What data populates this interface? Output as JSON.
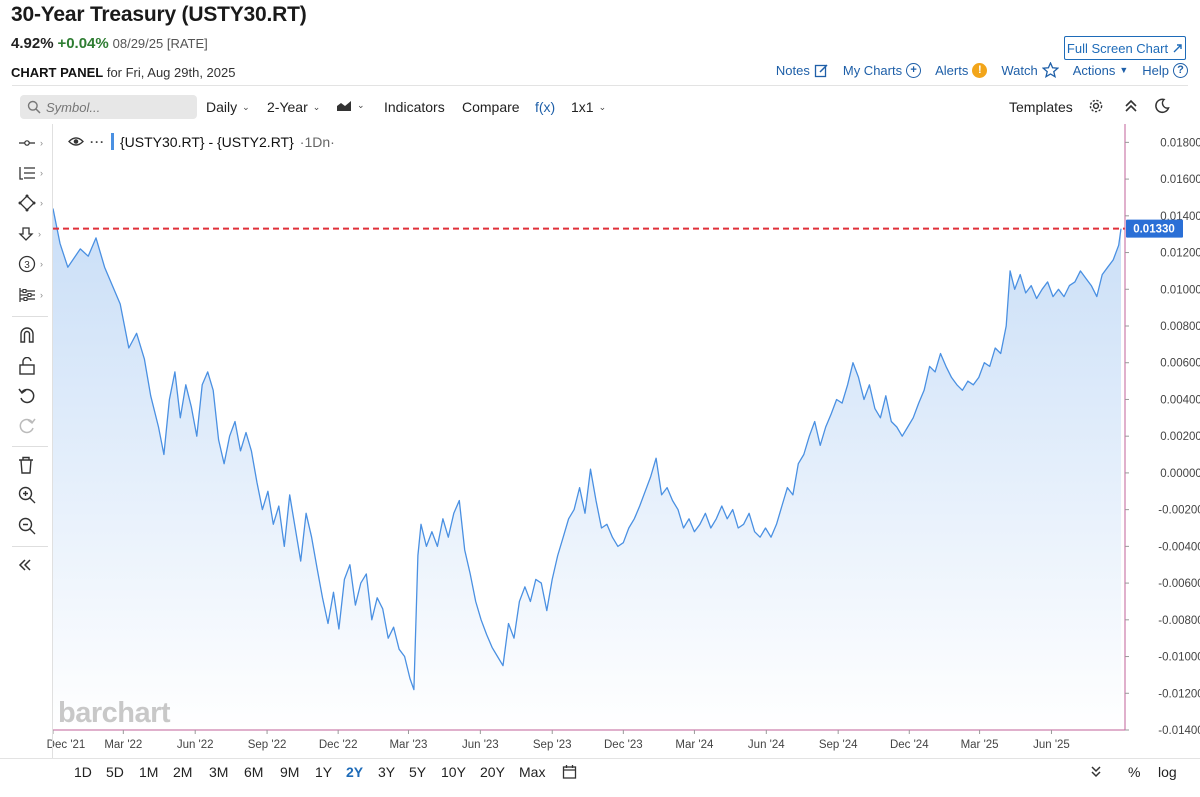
{
  "header": {
    "title": "30-Year Treasury (USTY30.RT)",
    "last": "4.92%",
    "change": "+0.04%",
    "date_note": "08/29/25 [RATE]",
    "panel_label": "CHART PANEL",
    "panel_date": "for Fri, Aug 29th, 2025",
    "fullscreen_label": "Full Screen Chart"
  },
  "top_links": {
    "notes": "Notes",
    "my_charts": "My Charts",
    "alerts": "Alerts",
    "watch": "Watch",
    "actions": "Actions",
    "help": "Help"
  },
  "toolbar": {
    "symbol_placeholder": "Symbol...",
    "period": "Daily",
    "range": "2-Year",
    "indicators": "Indicators",
    "compare": "Compare",
    "fx": "f(x)",
    "layout": "1x1",
    "templates": "Templates"
  },
  "legend": {
    "dots": "···",
    "series": "{USTY30.RT} - {USTY2.RT}",
    "period": "·1Dn·"
  },
  "watermark": "barchart",
  "bottom": {
    "ranges": [
      "1D",
      "5D",
      "1M",
      "2M",
      "3M",
      "6M",
      "9M",
      "1Y",
      "2Y",
      "3Y",
      "5Y",
      "10Y",
      "20Y",
      "Max"
    ],
    "active": "2Y",
    "percent": "%",
    "log": "log"
  },
  "colors": {
    "line": "#4a90e2",
    "area_top": "#c9def7",
    "area_bottom": "#ffffff",
    "ref_line": "#e0303a",
    "axis": "#c0629a",
    "price_tag": "#2a6fd6"
  },
  "chart_data": {
    "type": "area",
    "current_value": 0.0133,
    "current_label": "0.01330",
    "ylim": [
      -0.014,
      0.019
    ],
    "y_ticks": [
      "0.01800",
      "0.01600",
      "0.01400",
      "0.01200",
      "0.01000",
      "0.00800",
      "0.00600",
      "0.00400",
      "0.00200",
      "0.00000",
      "-0.00200",
      "-0.00400",
      "-0.00600",
      "-0.00800",
      "-0.01000",
      "-0.01200",
      "-0.01400"
    ],
    "y_tick_values": [
      0.018,
      0.016,
      0.014,
      0.012,
      0.01,
      0.008,
      0.006,
      0.004,
      0.002,
      0.0,
      -0.002,
      -0.004,
      -0.006,
      -0.008,
      -0.01,
      -0.012,
      -0.014
    ],
    "x_range": [
      "2021-12-01",
      "2025-08-29"
    ],
    "x_ticks": [
      {
        "label": "Dec '21",
        "date": "2021-12-01"
      },
      {
        "label": "Mar '22",
        "date": "2022-03-01"
      },
      {
        "label": "Jun '22",
        "date": "2022-06-01"
      },
      {
        "label": "Sep '22",
        "date": "2022-09-01"
      },
      {
        "label": "Dec '22",
        "date": "2022-12-01"
      },
      {
        "label": "Mar '23",
        "date": "2023-03-01"
      },
      {
        "label": "Jun '23",
        "date": "2023-06-01"
      },
      {
        "label": "Sep '23",
        "date": "2023-09-01"
      },
      {
        "label": "Dec '23",
        "date": "2023-12-01"
      },
      {
        "label": "Mar '24",
        "date": "2024-03-01"
      },
      {
        "label": "Jun '24",
        "date": "2024-06-01"
      },
      {
        "label": "Sep '24",
        "date": "2024-09-01"
      },
      {
        "label": "Dec '24",
        "date": "2024-12-01"
      },
      {
        "label": "Mar '25",
        "date": "2025-03-01"
      },
      {
        "label": "Jun '25",
        "date": "2025-06-01"
      }
    ],
    "series": [
      {
        "name": "{USTY30.RT} - {USTY2.RT}",
        "points": [
          [
            "2021-12-01",
            0.0144
          ],
          [
            "2021-12-10",
            0.0125
          ],
          [
            "2021-12-20",
            0.0112
          ],
          [
            "2022-01-05",
            0.0122
          ],
          [
            "2022-01-15",
            0.0118
          ],
          [
            "2022-01-25",
            0.0128
          ],
          [
            "2022-02-05",
            0.0112
          ],
          [
            "2022-02-15",
            0.0102
          ],
          [
            "2022-02-25",
            0.0092
          ],
          [
            "2022-03-08",
            0.0068
          ],
          [
            "2022-03-18",
            0.0076
          ],
          [
            "2022-03-28",
            0.0062
          ],
          [
            "2022-04-05",
            0.0042
          ],
          [
            "2022-04-15",
            0.0025
          ],
          [
            "2022-04-22",
            0.001
          ],
          [
            "2022-04-29",
            0.004
          ],
          [
            "2022-05-06",
            0.0055
          ],
          [
            "2022-05-13",
            0.003
          ],
          [
            "2022-05-20",
            0.0048
          ],
          [
            "2022-05-27",
            0.0036
          ],
          [
            "2022-06-03",
            0.002
          ],
          [
            "2022-06-10",
            0.0048
          ],
          [
            "2022-06-17",
            0.0055
          ],
          [
            "2022-06-24",
            0.0045
          ],
          [
            "2022-07-01",
            0.0018
          ],
          [
            "2022-07-08",
            0.0005
          ],
          [
            "2022-07-15",
            0.002
          ],
          [
            "2022-07-22",
            0.0028
          ],
          [
            "2022-07-29",
            0.0012
          ],
          [
            "2022-08-05",
            0.0022
          ],
          [
            "2022-08-12",
            0.0012
          ],
          [
            "2022-08-19",
            -0.0005
          ],
          [
            "2022-08-26",
            -0.002
          ],
          [
            "2022-09-02",
            -0.001
          ],
          [
            "2022-09-09",
            -0.0028
          ],
          [
            "2022-09-16",
            -0.0018
          ],
          [
            "2022-09-23",
            -0.004
          ],
          [
            "2022-09-30",
            -0.0012
          ],
          [
            "2022-10-07",
            -0.003
          ],
          [
            "2022-10-14",
            -0.0048
          ],
          [
            "2022-10-21",
            -0.0022
          ],
          [
            "2022-10-28",
            -0.0035
          ],
          [
            "2022-11-04",
            -0.0052
          ],
          [
            "2022-11-11",
            -0.0068
          ],
          [
            "2022-11-18",
            -0.0082
          ],
          [
            "2022-11-25",
            -0.0065
          ],
          [
            "2022-12-02",
            -0.0085
          ],
          [
            "2022-12-09",
            -0.0058
          ],
          [
            "2022-12-16",
            -0.005
          ],
          [
            "2022-12-23",
            -0.0072
          ],
          [
            "2022-12-30",
            -0.006
          ],
          [
            "2023-01-06",
            -0.0055
          ],
          [
            "2023-01-13",
            -0.008
          ],
          [
            "2023-01-20",
            -0.0068
          ],
          [
            "2023-01-27",
            -0.0074
          ],
          [
            "2023-02-03",
            -0.009
          ],
          [
            "2023-02-10",
            -0.0084
          ],
          [
            "2023-02-17",
            -0.0096
          ],
          [
            "2023-02-24",
            -0.01
          ],
          [
            "2023-03-03",
            -0.0112
          ],
          [
            "2023-03-08",
            -0.0118
          ],
          [
            "2023-03-13",
            -0.0045
          ],
          [
            "2023-03-17",
            -0.0028
          ],
          [
            "2023-03-24",
            -0.004
          ],
          [
            "2023-03-31",
            -0.0032
          ],
          [
            "2023-04-07",
            -0.004
          ],
          [
            "2023-04-14",
            -0.0025
          ],
          [
            "2023-04-21",
            -0.0035
          ],
          [
            "2023-04-28",
            -0.0022
          ],
          [
            "2023-05-05",
            -0.0015
          ],
          [
            "2023-05-12",
            -0.0042
          ],
          [
            "2023-05-19",
            -0.0055
          ],
          [
            "2023-05-26",
            -0.007
          ],
          [
            "2023-06-02",
            -0.008
          ],
          [
            "2023-06-09",
            -0.0088
          ],
          [
            "2023-06-16",
            -0.0095
          ],
          [
            "2023-06-23",
            -0.01
          ],
          [
            "2023-06-30",
            -0.0105
          ],
          [
            "2023-07-07",
            -0.0082
          ],
          [
            "2023-07-14",
            -0.009
          ],
          [
            "2023-07-21",
            -0.007
          ],
          [
            "2023-07-28",
            -0.0062
          ],
          [
            "2023-08-04",
            -0.007
          ],
          [
            "2023-08-11",
            -0.0058
          ],
          [
            "2023-08-18",
            -0.006
          ],
          [
            "2023-08-25",
            -0.0075
          ],
          [
            "2023-09-01",
            -0.0058
          ],
          [
            "2023-09-08",
            -0.0045
          ],
          [
            "2023-09-15",
            -0.0035
          ],
          [
            "2023-09-22",
            -0.0025
          ],
          [
            "2023-09-29",
            -0.002
          ],
          [
            "2023-10-06",
            -0.0008
          ],
          [
            "2023-10-13",
            -0.0022
          ],
          [
            "2023-10-20",
            0.0002
          ],
          [
            "2023-10-27",
            -0.0015
          ],
          [
            "2023-11-03",
            -0.003
          ],
          [
            "2023-11-10",
            -0.0028
          ],
          [
            "2023-11-17",
            -0.0035
          ],
          [
            "2023-11-24",
            -0.004
          ],
          [
            "2023-12-01",
            -0.0038
          ],
          [
            "2023-12-08",
            -0.003
          ],
          [
            "2023-12-15",
            -0.0025
          ],
          [
            "2023-12-22",
            -0.0018
          ],
          [
            "2023-12-29",
            -0.001
          ],
          [
            "2024-01-05",
            -0.0002
          ],
          [
            "2024-01-12",
            0.0008
          ],
          [
            "2024-01-19",
            -0.0012
          ],
          [
            "2024-01-26",
            -0.0008
          ],
          [
            "2024-02-02",
            -0.0015
          ],
          [
            "2024-02-09",
            -0.002
          ],
          [
            "2024-02-16",
            -0.003
          ],
          [
            "2024-02-23",
            -0.0025
          ],
          [
            "2024-03-01",
            -0.0032
          ],
          [
            "2024-03-08",
            -0.0028
          ],
          [
            "2024-03-15",
            -0.0022
          ],
          [
            "2024-03-22",
            -0.003
          ],
          [
            "2024-03-29",
            -0.0025
          ],
          [
            "2024-04-05",
            -0.0018
          ],
          [
            "2024-04-12",
            -0.0025
          ],
          [
            "2024-04-19",
            -0.002
          ],
          [
            "2024-04-26",
            -0.003
          ],
          [
            "2024-05-03",
            -0.0028
          ],
          [
            "2024-05-10",
            -0.0022
          ],
          [
            "2024-05-17",
            -0.0032
          ],
          [
            "2024-05-24",
            -0.0035
          ],
          [
            "2024-05-31",
            -0.003
          ],
          [
            "2024-06-07",
            -0.0035
          ],
          [
            "2024-06-14",
            -0.0028
          ],
          [
            "2024-06-21",
            -0.0018
          ],
          [
            "2024-06-28",
            -0.0008
          ],
          [
            "2024-07-05",
            -0.0012
          ],
          [
            "2024-07-12",
            0.0005
          ],
          [
            "2024-07-19",
            0.001
          ],
          [
            "2024-07-26",
            0.002
          ],
          [
            "2024-08-02",
            0.0028
          ],
          [
            "2024-08-09",
            0.0015
          ],
          [
            "2024-08-16",
            0.0025
          ],
          [
            "2024-08-23",
            0.0032
          ],
          [
            "2024-08-30",
            0.004
          ],
          [
            "2024-09-06",
            0.0038
          ],
          [
            "2024-09-13",
            0.0048
          ],
          [
            "2024-09-20",
            0.006
          ],
          [
            "2024-09-27",
            0.0052
          ],
          [
            "2024-10-04",
            0.004
          ],
          [
            "2024-10-11",
            0.0048
          ],
          [
            "2024-10-18",
            0.0035
          ],
          [
            "2024-10-25",
            0.003
          ],
          [
            "2024-11-01",
            0.0042
          ],
          [
            "2024-11-08",
            0.0028
          ],
          [
            "2024-11-15",
            0.0025
          ],
          [
            "2024-11-22",
            0.002
          ],
          [
            "2024-11-29",
            0.0025
          ],
          [
            "2024-12-06",
            0.003
          ],
          [
            "2024-12-13",
            0.0038
          ],
          [
            "2024-12-20",
            0.0045
          ],
          [
            "2024-12-27",
            0.0058
          ],
          [
            "2025-01-03",
            0.0055
          ],
          [
            "2025-01-10",
            0.0065
          ],
          [
            "2025-01-17",
            0.0058
          ],
          [
            "2025-01-24",
            0.0052
          ],
          [
            "2025-01-31",
            0.0048
          ],
          [
            "2025-02-07",
            0.0045
          ],
          [
            "2025-02-14",
            0.005
          ],
          [
            "2025-02-21",
            0.0048
          ],
          [
            "2025-02-28",
            0.0052
          ],
          [
            "2025-03-07",
            0.006
          ],
          [
            "2025-03-14",
            0.0058
          ],
          [
            "2025-03-21",
            0.0068
          ],
          [
            "2025-03-28",
            0.0065
          ],
          [
            "2025-04-04",
            0.008
          ],
          [
            "2025-04-09",
            0.011
          ],
          [
            "2025-04-15",
            0.01
          ],
          [
            "2025-04-22",
            0.0108
          ],
          [
            "2025-04-29",
            0.0098
          ],
          [
            "2025-05-06",
            0.0102
          ],
          [
            "2025-05-13",
            0.0095
          ],
          [
            "2025-05-20",
            0.01
          ],
          [
            "2025-05-27",
            0.0104
          ],
          [
            "2025-06-03",
            0.0096
          ],
          [
            "2025-06-10",
            0.01
          ],
          [
            "2025-06-17",
            0.0096
          ],
          [
            "2025-06-24",
            0.0102
          ],
          [
            "2025-07-01",
            0.0104
          ],
          [
            "2025-07-08",
            0.011
          ],
          [
            "2025-07-15",
            0.0106
          ],
          [
            "2025-07-22",
            0.0102
          ],
          [
            "2025-07-29",
            0.0096
          ],
          [
            "2025-08-05",
            0.0108
          ],
          [
            "2025-08-12",
            0.0112
          ],
          [
            "2025-08-19",
            0.0116
          ],
          [
            "2025-08-26",
            0.0124
          ],
          [
            "2025-08-29",
            0.0133
          ]
        ]
      }
    ]
  }
}
